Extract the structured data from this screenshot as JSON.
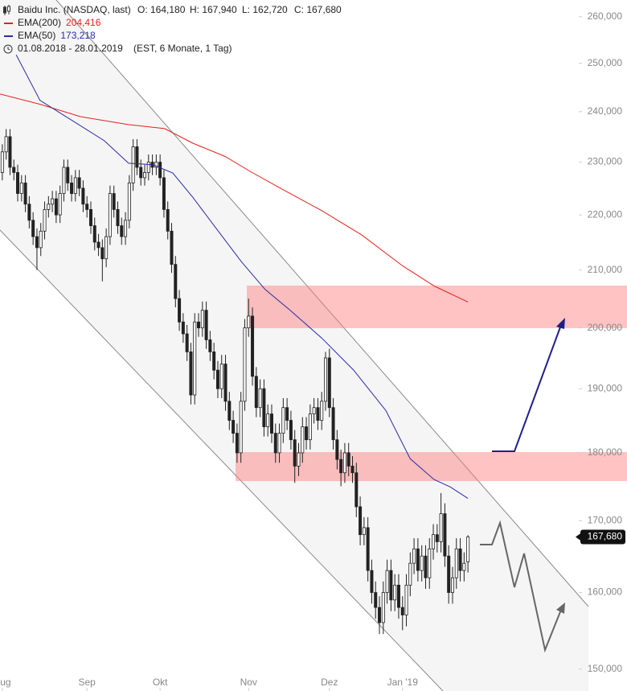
{
  "chart_data": {
    "type": "candlestick",
    "title": "Baidu Inc. (NASDAQ, last)",
    "quote": [
      "O: 164,180",
      "H: 167,940",
      "L: 162,720",
      "C: 167,680"
    ],
    "subtitle": "01.08.2018 - 28.01.2019",
    "note": "(EST, 6 Monate, 1 Tag)",
    "log_scale": true,
    "ylim": [
      263700,
      147250
    ],
    "yticks": [
      {
        "value": 260000,
        "label": "260,000"
      },
      {
        "value": 250000,
        "label": "250,000"
      },
      {
        "value": 240000,
        "label": "240,000"
      },
      {
        "value": 230000,
        "label": "230,000"
      },
      {
        "value": 220000,
        "label": "220,000"
      },
      {
        "value": 210000,
        "label": "210,000"
      },
      {
        "value": 200000,
        "label": "200,000"
      },
      {
        "value": 190000,
        "label": "190,000"
      },
      {
        "value": 180000,
        "label": "180,000"
      },
      {
        "value": 170000,
        "label": "170,000"
      },
      {
        "value": 160000,
        "label": "160,000"
      },
      {
        "value": 150000,
        "label": "150,000"
      }
    ],
    "xlim": [
      -0.6,
      149.8
    ],
    "xticks": [
      {
        "value": 0,
        "label": "Aug"
      },
      {
        "value": 22,
        "label": "Sep"
      },
      {
        "value": 41,
        "label": "Okt"
      },
      {
        "value": 64,
        "label": "Nov"
      },
      {
        "value": 85,
        "label": "Dez"
      },
      {
        "value": 104,
        "label": "Jan '19"
      }
    ],
    "up_color": "#ffffff",
    "down_color": "#222222",
    "candles": {
      "open": [
        228000,
        232000,
        235000,
        229000,
        228000,
        224000,
        226000,
        222000,
        219000,
        216000,
        214000,
        217000,
        221000,
        222000,
        223000,
        220000,
        224000,
        229000,
        226000,
        224000,
        227000,
        225000,
        222000,
        221000,
        218000,
        215000,
        214000,
        212000,
        216000,
        224000,
        221000,
        218000,
        216000,
        219000,
        226000,
        233000,
        229000,
        227000,
        228000,
        230000,
        229000,
        230000,
        227000,
        221000,
        217000,
        211000,
        205000,
        201000,
        199000,
        196000,
        189000,
        201000,
        200000,
        203000,
        198000,
        196000,
        193000,
        190000,
        194000,
        188000,
        185000,
        183000,
        180000,
        188000,
        200000,
        202000,
        192000,
        187000,
        190000,
        184000,
        186000,
        183000,
        180000,
        183000,
        187000,
        185000,
        182000,
        178000,
        180000,
        184000,
        182000,
        186000,
        187000,
        185000,
        188000,
        195000,
        187000,
        182000,
        179000,
        177000,
        180000,
        178000,
        177000,
        172000,
        168000,
        169000,
        163000,
        160000,
        158000,
        156000,
        160000,
        163000,
        159000,
        161000,
        158000,
        157000,
        161000,
        164000,
        166000,
        163000,
        165000,
        162000,
        166000,
        168000,
        167000,
        171000,
        165000,
        160000,
        162000,
        166000,
        163000,
        164180
      ],
      "high": [
        233500,
        236500,
        236500,
        230500,
        229500,
        227500,
        227500,
        223500,
        220500,
        217500,
        218500,
        222500,
        223500,
        224500,
        224500,
        225500,
        230500,
        230500,
        227500,
        228500,
        228500,
        226500,
        223500,
        222500,
        219500,
        216500,
        215500,
        217500,
        225500,
        225500,
        222500,
        219500,
        220500,
        227500,
        234500,
        234500,
        230500,
        229500,
        231500,
        231500,
        231500,
        231500,
        228500,
        222500,
        218500,
        212500,
        206500,
        202500,
        200500,
        197500,
        202500,
        202500,
        204500,
        204500,
        199500,
        197500,
        194500,
        195500,
        195500,
        189500,
        186500,
        184500,
        189500,
        201500,
        205000,
        203500,
        193500,
        191500,
        191500,
        187500,
        187500,
        184500,
        184500,
        188500,
        188500,
        186500,
        183500,
        181500,
        185500,
        185500,
        187500,
        188500,
        188500,
        189500,
        196000,
        196500,
        188500,
        183500,
        180500,
        181500,
        181500,
        179500,
        178500,
        173500,
        170500,
        170500,
        164500,
        161500,
        159500,
        161500,
        164500,
        164500,
        162500,
        162500,
        159500,
        162500,
        165500,
        167500,
        167500,
        166500,
        166500,
        167500,
        169500,
        169500,
        174000,
        172500,
        166500,
        163500,
        167500,
        167500,
        165500,
        167940
      ],
      "low": [
        226500,
        230500,
        227500,
        226500,
        222500,
        222500,
        220500,
        217500,
        214500,
        210000,
        212500,
        215500,
        219500,
        220500,
        218500,
        218500,
        222500,
        224500,
        222500,
        222500,
        223500,
        220500,
        219500,
        216500,
        213500,
        212500,
        208000,
        210500,
        214500,
        219500,
        216500,
        214500,
        214500,
        217500,
        224500,
        227500,
        225500,
        225500,
        226500,
        227500,
        227500,
        225500,
        219500,
        215500,
        209500,
        203500,
        199500,
        197500,
        194500,
        187500,
        187500,
        198500,
        198500,
        196500,
        194500,
        191500,
        188500,
        188500,
        186500,
        183500,
        181500,
        178500,
        178500,
        186500,
        198500,
        190500,
        185500,
        185500,
        182500,
        182500,
        181500,
        178500,
        178500,
        181500,
        183500,
        180500,
        175500,
        176500,
        178500,
        180500,
        180500,
        184500,
        183500,
        183500,
        186500,
        185500,
        180500,
        177500,
        175000,
        175500,
        176500,
        175500,
        170500,
        166500,
        166500,
        161500,
        158500,
        156500,
        154500,
        154500,
        158500,
        157500,
        157500,
        156500,
        155000,
        155500,
        159500,
        162500,
        161500,
        161500,
        160500,
        160500,
        164500,
        165500,
        165500,
        163500,
        158500,
        158500,
        160500,
        161500,
        161500,
        162720
      ],
      "close": [
        232000,
        235000,
        229000,
        228000,
        224000,
        226000,
        222000,
        219000,
        216000,
        214000,
        217000,
        221000,
        222000,
        223000,
        220000,
        224000,
        229000,
        226000,
        224000,
        227000,
        225000,
        222000,
        221000,
        218000,
        215000,
        214000,
        212000,
        216000,
        224000,
        221000,
        218000,
        216000,
        219000,
        226000,
        233000,
        229000,
        227000,
        228000,
        230000,
        229000,
        230000,
        227000,
        221000,
        217000,
        211000,
        205000,
        201000,
        199000,
        196000,
        189000,
        201000,
        200000,
        203000,
        198000,
        196000,
        193000,
        190000,
        194000,
        188000,
        185000,
        183000,
        180000,
        188000,
        200000,
        202000,
        192000,
        187000,
        190000,
        184000,
        186000,
        183000,
        180000,
        183000,
        187000,
        185000,
        182000,
        178000,
        180000,
        184000,
        182000,
        186000,
        187000,
        185000,
        188000,
        195000,
        187000,
        182000,
        179000,
        177000,
        180000,
        178000,
        177000,
        172000,
        168000,
        169000,
        163000,
        160000,
        158000,
        156000,
        160000,
        163000,
        159000,
        161000,
        158000,
        157000,
        161000,
        164000,
        166000,
        163000,
        165000,
        162000,
        166000,
        168000,
        167000,
        171000,
        165000,
        160000,
        162000,
        166000,
        163000,
        164000,
        167680
      ],
      "last_label": "167,680"
    },
    "series": [
      {
        "name": "EMA(200)",
        "color": "#e3221b",
        "last_label": "204,416",
        "x": [
          -0.6,
          9.8,
          20.3,
          32.8,
          42.2,
          49.5,
          57.9,
          64.2,
          72.5,
          83.0,
          93.4,
          103.9,
          112.2,
          121
        ],
        "values": [
          243600,
          241500,
          239000,
          237400,
          236600,
          233700,
          231100,
          228300,
          224900,
          220800,
          216300,
          210800,
          207200,
          204416
        ]
      },
      {
        "name": "EMA(50)",
        "color": "#2b2ba3",
        "last_label": "173,218",
        "x": [
          3.6,
          9.8,
          18.2,
          26.5,
          32.8,
          39.1,
          44.3,
          49.5,
          55.8,
          62.1,
          68.3,
          74.6,
          83.0,
          91.3,
          99.7,
          106.0,
          112.2,
          116.4,
          121
        ],
        "values": [
          251800,
          242300,
          238200,
          234200,
          229800,
          229500,
          227900,
          223300,
          217300,
          211500,
          206600,
          203100,
          198300,
          193000,
          186500,
          179100,
          176000,
          174900,
          173218
        ]
      }
    ]
  }
}
